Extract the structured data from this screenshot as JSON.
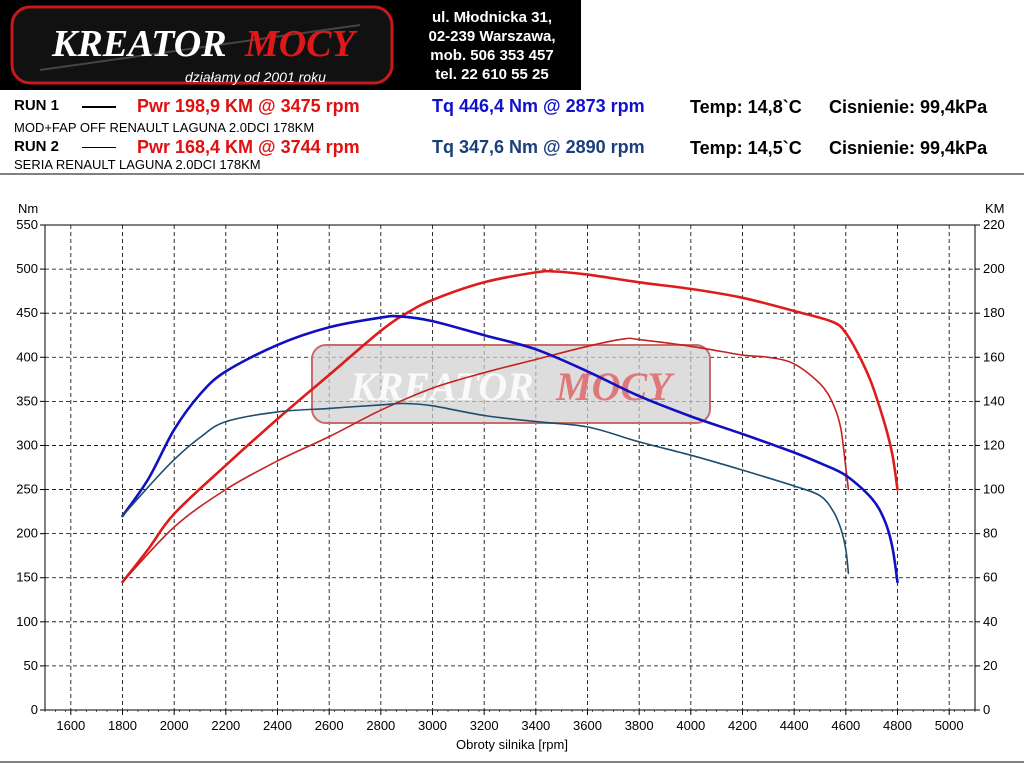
{
  "header": {
    "logo": {
      "brand_word1": "KREATOR",
      "brand_word2": "MOCY",
      "tagline": "działamy od 2001 roku"
    },
    "address_lines": [
      "ul. Młodnicka 31,",
      "02-239  Warszawa,",
      "mob.  506 353 457",
      "tel.  22 610 55 25"
    ],
    "run1": {
      "label": "RUN 1",
      "power": "Pwr  198,9 KM @ 3475 rpm",
      "torque": "Tq 446,4 Nm @ 2873 rpm",
      "temp": "Temp: 14,8`C",
      "pressure": "Cisnienie: 99,4kPa",
      "description": "MOD+FAP OFF RENAULT LAGUNA 2.0DCI 178KM"
    },
    "run2": {
      "label": "RUN 2",
      "power": "Pwr  168,4 KM @ 3744 rpm",
      "torque": "Tq 347,6 Nm @ 2890 rpm",
      "temp": "Temp: 14,5`C",
      "pressure": "Cisnienie: 99,4kPa",
      "description": "SERIA RENAULT LAGUNA 2.0DCI 178KM"
    }
  },
  "colors": {
    "run1_power": "#dd1c1c",
    "run2_power": "#c42222",
    "run1_torque": "#1010c0",
    "run2_torque": "#1f4d6e",
    "power_text": "#e01010",
    "torque_text": "#1111cc",
    "run2_torque_text": "#1a3f7a"
  },
  "chart_data": {
    "type": "line",
    "xlabel": "Obroty silnika [rpm]",
    "ylabel_left": "Nm",
    "ylabel_right": "KM",
    "xlim": [
      1500,
      5100
    ],
    "ylim_left": [
      0,
      550
    ],
    "ylim_right": [
      0,
      220
    ],
    "x_ticks": [
      1600,
      1800,
      2000,
      2200,
      2400,
      2600,
      2800,
      3000,
      3200,
      3400,
      3600,
      3800,
      4000,
      4200,
      4400,
      4600,
      4800,
      5000
    ],
    "y_ticks_left": [
      0,
      50,
      100,
      150,
      200,
      250,
      300,
      350,
      400,
      450,
      500,
      550
    ],
    "y_ticks_right": [
      0,
      20,
      40,
      60,
      80,
      100,
      120,
      140,
      160,
      180,
      200,
      220
    ],
    "grid": true,
    "watermark": {
      "word1": "KREATOR",
      "word2": "MOCY"
    },
    "series": [
      {
        "name": "Pwr",
        "run": "RUN 1",
        "axis": "right",
        "color_key": "run1_power",
        "points": [
          [
            1800,
            58
          ],
          [
            1900,
            73
          ],
          [
            2000,
            89
          ],
          [
            2200,
            111
          ],
          [
            2400,
            132
          ],
          [
            2600,
            152
          ],
          [
            2800,
            172
          ],
          [
            2900,
            180
          ],
          [
            3000,
            186
          ],
          [
            3200,
            194
          ],
          [
            3400,
            198.5
          ],
          [
            3475,
            198.9
          ],
          [
            3600,
            197.5
          ],
          [
            3800,
            194
          ],
          [
            4000,
            191
          ],
          [
            4200,
            187
          ],
          [
            4400,
            181
          ],
          [
            4550,
            176
          ],
          [
            4600,
            171
          ],
          [
            4650,
            161
          ],
          [
            4700,
            148
          ],
          [
            4750,
            130
          ],
          [
            4780,
            116
          ],
          [
            4800,
            100
          ]
        ]
      },
      {
        "name": "Pwr",
        "run": "RUN 2",
        "axis": "right",
        "color_key": "run2_power",
        "points": [
          [
            1800,
            58
          ],
          [
            2000,
            83
          ],
          [
            2200,
            100
          ],
          [
            2400,
            113
          ],
          [
            2600,
            124
          ],
          [
            2800,
            136
          ],
          [
            3000,
            146
          ],
          [
            3200,
            153
          ],
          [
            3400,
            159
          ],
          [
            3600,
            165
          ],
          [
            3744,
            168.4
          ],
          [
            3800,
            168
          ],
          [
            4000,
            165
          ],
          [
            4200,
            161
          ],
          [
            4300,
            160
          ],
          [
            4400,
            157
          ],
          [
            4500,
            148
          ],
          [
            4550,
            139
          ],
          [
            4580,
            128
          ],
          [
            4600,
            110
          ],
          [
            4610,
            100
          ]
        ]
      },
      {
        "name": "Tq",
        "run": "RUN 1",
        "axis": "left",
        "color_key": "run1_torque",
        "points": [
          [
            1800,
            220
          ],
          [
            1900,
            262
          ],
          [
            2000,
            318
          ],
          [
            2100,
            358
          ],
          [
            2200,
            384
          ],
          [
            2400,
            414
          ],
          [
            2600,
            434
          ],
          [
            2800,
            445
          ],
          [
            2873,
            446.4
          ],
          [
            3000,
            441
          ],
          [
            3200,
            425
          ],
          [
            3400,
            409
          ],
          [
            3600,
            384
          ],
          [
            3800,
            356
          ],
          [
            4000,
            333
          ],
          [
            4200,
            313
          ],
          [
            4400,
            292
          ],
          [
            4500,
            280
          ],
          [
            4600,
            266
          ],
          [
            4700,
            240
          ],
          [
            4750,
            215
          ],
          [
            4780,
            185
          ],
          [
            4800,
            145
          ]
        ]
      },
      {
        "name": "Tq",
        "run": "RUN 2",
        "axis": "left",
        "color_key": "run2_torque",
        "points": [
          [
            1800,
            220
          ],
          [
            1900,
            253
          ],
          [
            2000,
            284
          ],
          [
            2100,
            309
          ],
          [
            2200,
            327
          ],
          [
            2400,
            338
          ],
          [
            2600,
            342
          ],
          [
            2800,
            346
          ],
          [
            2890,
            347.6
          ],
          [
            3000,
            345
          ],
          [
            3200,
            334
          ],
          [
            3400,
            327
          ],
          [
            3600,
            321
          ],
          [
            3800,
            304
          ],
          [
            4000,
            289
          ],
          [
            4200,
            272
          ],
          [
            4400,
            254
          ],
          [
            4500,
            243
          ],
          [
            4550,
            226
          ],
          [
            4580,
            206
          ],
          [
            4600,
            182
          ],
          [
            4610,
            155
          ]
        ]
      }
    ]
  }
}
